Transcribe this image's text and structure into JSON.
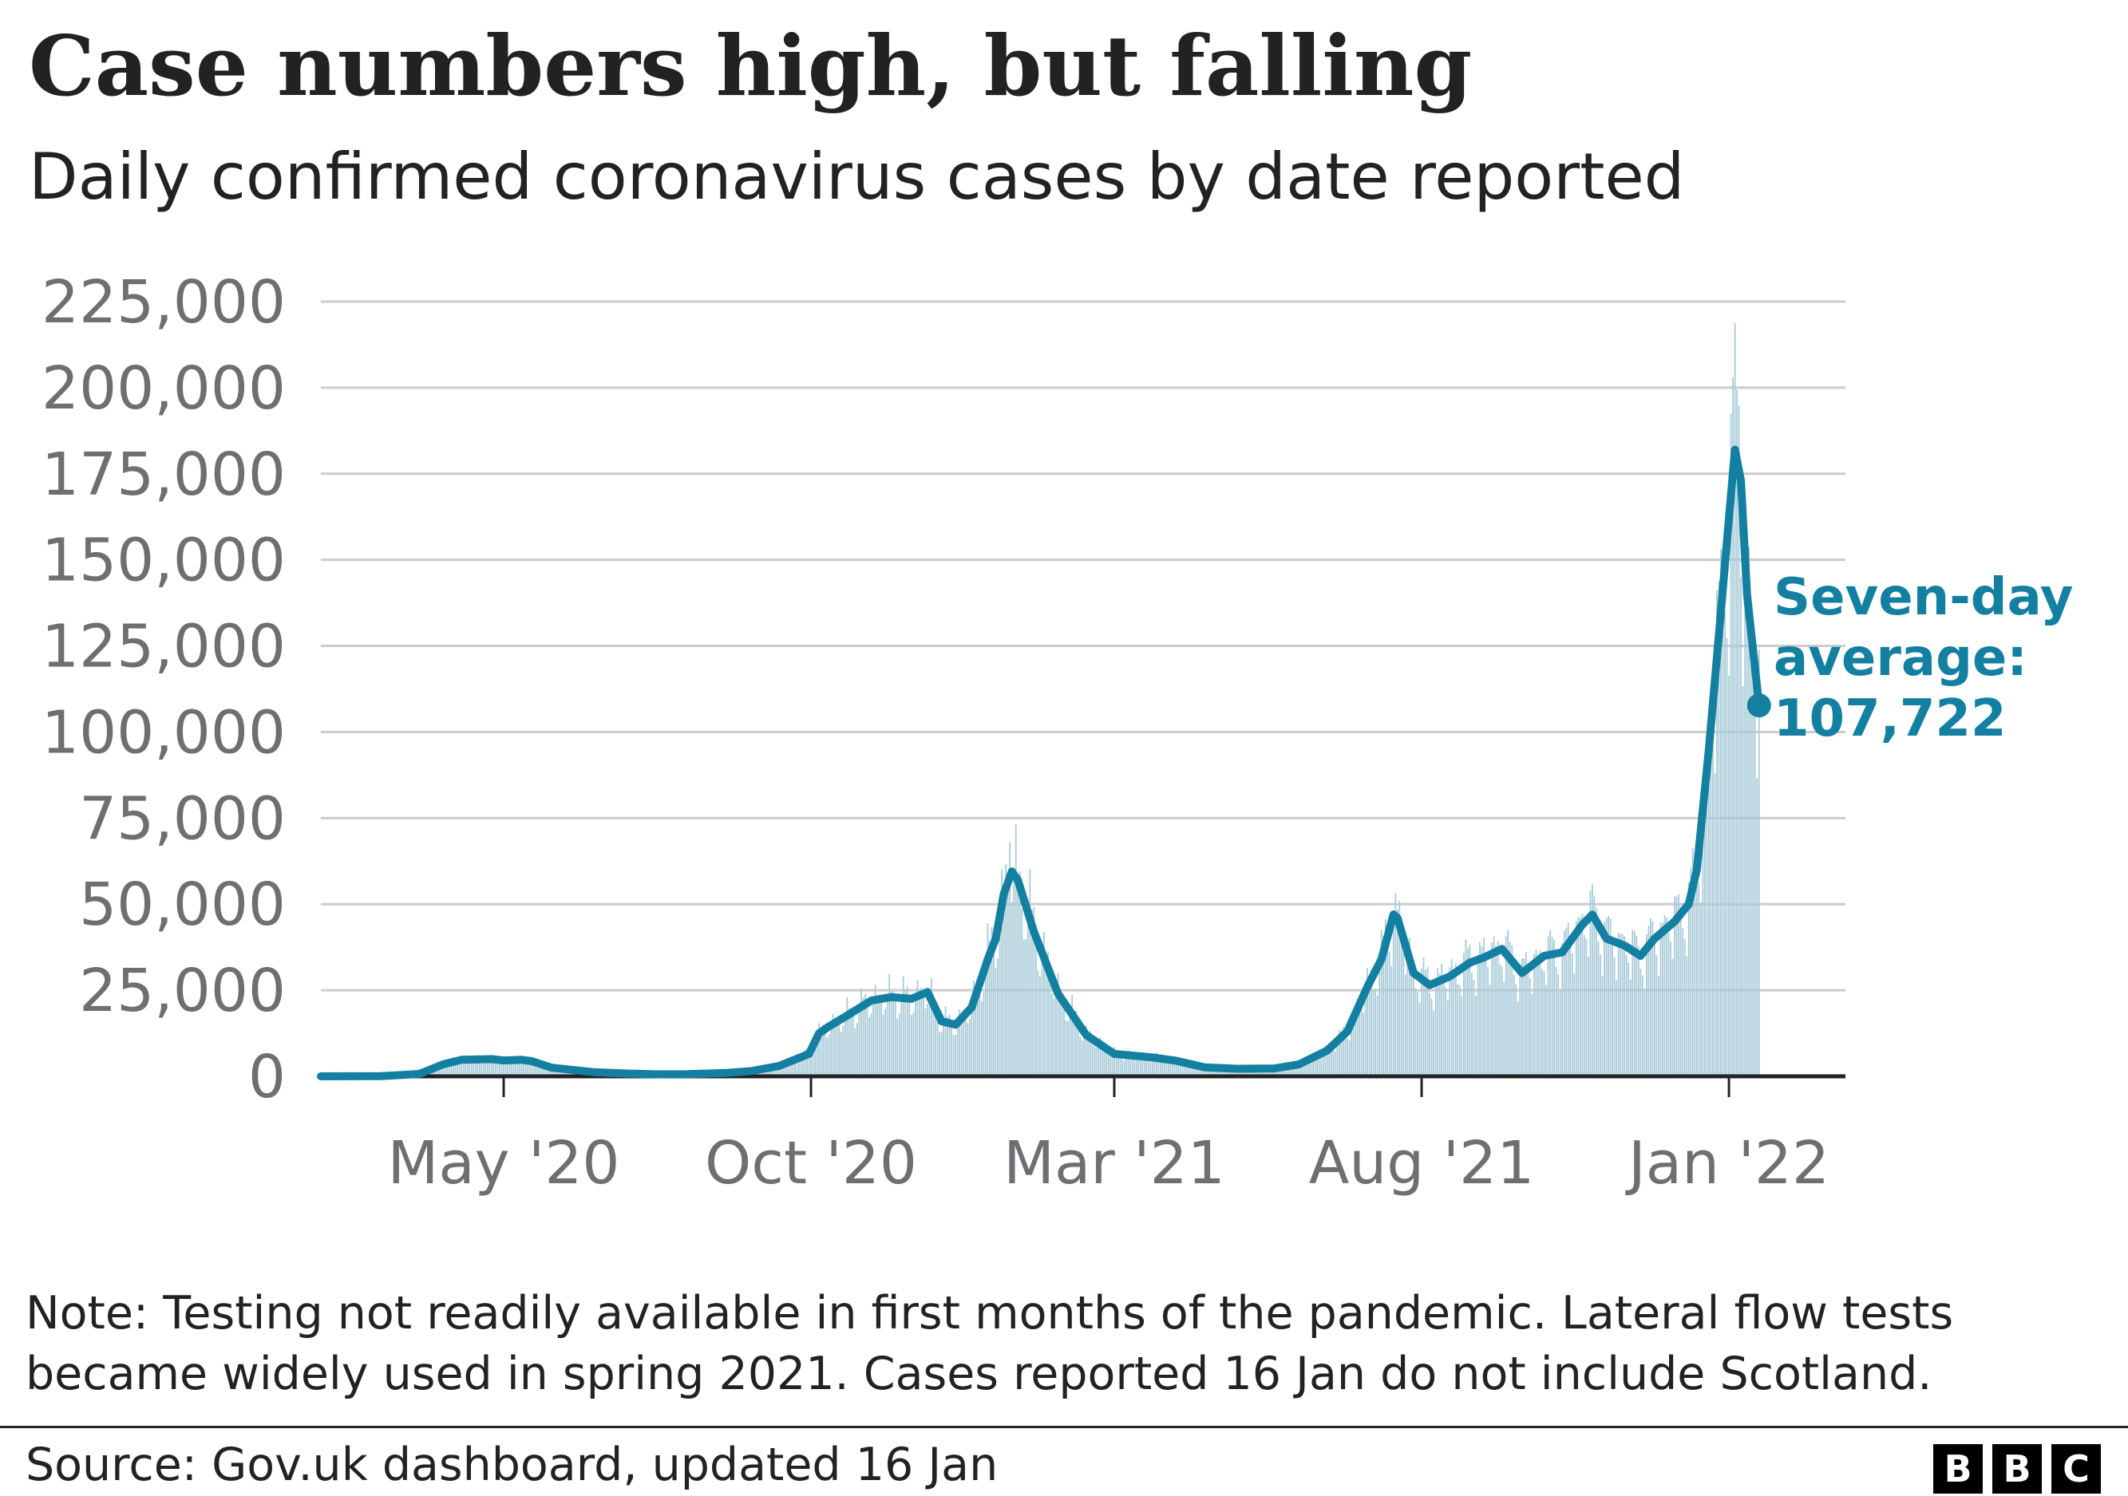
{
  "chart_data": {
    "type": "bar+line",
    "title": "Case numbers high, but falling",
    "subtitle": "Daily confirmed coronavirus cases by date reported",
    "xlabel": "",
    "ylabel": "",
    "ylim": [
      0,
      225000
    ],
    "yticks": [
      0,
      25000,
      50000,
      75000,
      100000,
      125000,
      150000,
      175000,
      200000,
      225000
    ],
    "ytick_labels": [
      "0",
      "25,000",
      "50,000",
      "75,000",
      "100,000",
      "125,000",
      "150,000",
      "175,000",
      "200,000",
      "225,000"
    ],
    "xlim": [
      "2020-01-31",
      "2022-02-28"
    ],
    "xticks": [
      {
        "date": "2020-05-01",
        "label": "May '20"
      },
      {
        "date": "2020-10-01",
        "label": "Oct '20"
      },
      {
        "date": "2021-03-01",
        "label": "Mar '21"
      },
      {
        "date": "2021-08-01",
        "label": "Aug '21"
      },
      {
        "date": "2022-01-01",
        "label": "Jan '22"
      }
    ],
    "grid": true,
    "series": [
      {
        "name": "Daily confirmed cases",
        "type": "bar",
        "note": "daily values approximated from the seven-day average with weekly variation",
        "color": "#a7cad8"
      },
      {
        "name": "Seven-day average",
        "type": "line",
        "color": "#1380a1",
        "points": [
          [
            "2020-01-31",
            0
          ],
          [
            "2020-03-01",
            50
          ],
          [
            "2020-03-20",
            700
          ],
          [
            "2020-04-01",
            3500
          ],
          [
            "2020-04-10",
            4800
          ],
          [
            "2020-04-25",
            5000
          ],
          [
            "2020-05-01",
            4600
          ],
          [
            "2020-05-10",
            4800
          ],
          [
            "2020-05-15",
            4400
          ],
          [
            "2020-05-25",
            2500
          ],
          [
            "2020-06-15",
            1200
          ],
          [
            "2020-07-01",
            800
          ],
          [
            "2020-07-15",
            600
          ],
          [
            "2020-08-01",
            650
          ],
          [
            "2020-08-20",
            1000
          ],
          [
            "2020-09-01",
            1500
          ],
          [
            "2020-09-15",
            3000
          ],
          [
            "2020-09-30",
            6500
          ],
          [
            "2020-10-05",
            12500
          ],
          [
            "2020-10-10",
            14500
          ],
          [
            "2020-10-20",
            18000
          ],
          [
            "2020-10-31",
            22000
          ],
          [
            "2020-11-10",
            23000
          ],
          [
            "2020-11-20",
            22500
          ],
          [
            "2020-11-28",
            24500
          ],
          [
            "2020-12-05",
            16000
          ],
          [
            "2020-12-12",
            15000
          ],
          [
            "2020-12-20",
            20000
          ],
          [
            "2020-12-28",
            34000
          ],
          [
            "2021-01-01",
            40000
          ],
          [
            "2021-01-05",
            53000
          ],
          [
            "2021-01-09",
            59500
          ],
          [
            "2021-01-12",
            57000
          ],
          [
            "2021-01-20",
            42000
          ],
          [
            "2021-02-01",
            24000
          ],
          [
            "2021-02-15",
            12000
          ],
          [
            "2021-03-01",
            6500
          ],
          [
            "2021-03-20",
            5500
          ],
          [
            "2021-04-01",
            4500
          ],
          [
            "2021-04-15",
            2600
          ],
          [
            "2021-05-01",
            2200
          ],
          [
            "2021-05-20",
            2300
          ],
          [
            "2021-06-01",
            3500
          ],
          [
            "2021-06-15",
            7500
          ],
          [
            "2021-06-25",
            13000
          ],
          [
            "2021-07-05",
            26000
          ],
          [
            "2021-07-12",
            34000
          ],
          [
            "2021-07-18",
            47000
          ],
          [
            "2021-07-20",
            46000
          ],
          [
            "2021-07-28",
            30000
          ],
          [
            "2021-08-05",
            26500
          ],
          [
            "2021-08-15",
            29000
          ],
          [
            "2021-08-25",
            33000
          ],
          [
            "2021-09-01",
            34500
          ],
          [
            "2021-09-10",
            37000
          ],
          [
            "2021-09-20",
            30000
          ],
          [
            "2021-10-01",
            35000
          ],
          [
            "2021-10-10",
            36000
          ],
          [
            "2021-10-20",
            44000
          ],
          [
            "2021-10-25",
            47000
          ],
          [
            "2021-11-01",
            40000
          ],
          [
            "2021-11-10",
            38000
          ],
          [
            "2021-11-18",
            35000
          ],
          [
            "2021-11-25",
            40000
          ],
          [
            "2021-12-05",
            45000
          ],
          [
            "2021-12-12",
            50000
          ],
          [
            "2021-12-16",
            60000
          ],
          [
            "2021-12-22",
            95000
          ],
          [
            "2021-12-28",
            135000
          ],
          [
            "2022-01-01",
            162000
          ],
          [
            "2022-01-04",
            182000
          ],
          [
            "2022-01-07",
            173000
          ],
          [
            "2022-01-10",
            140000
          ],
          [
            "2022-01-16",
            107722
          ]
        ]
      }
    ],
    "annotation": {
      "date": "2022-01-16",
      "value": 107722,
      "lines": [
        "Seven-day",
        "average:",
        "107,722"
      ]
    }
  },
  "note": "Note: Testing not readily available in first months of the pandemic. Lateral flow tests became widely used in spring 2021. Cases reported 16 Jan do not include Scotland.",
  "source": "Source: Gov.uk dashboard, updated 16 Jan",
  "logo_letters": [
    "B",
    "B",
    "C"
  ],
  "colors": {
    "line": "#1380a1",
    "bars": "#a7cad8",
    "grid": "#cccccc",
    "axis": "#222222",
    "tick_text": "#6e6e73",
    "text": "#222222"
  }
}
